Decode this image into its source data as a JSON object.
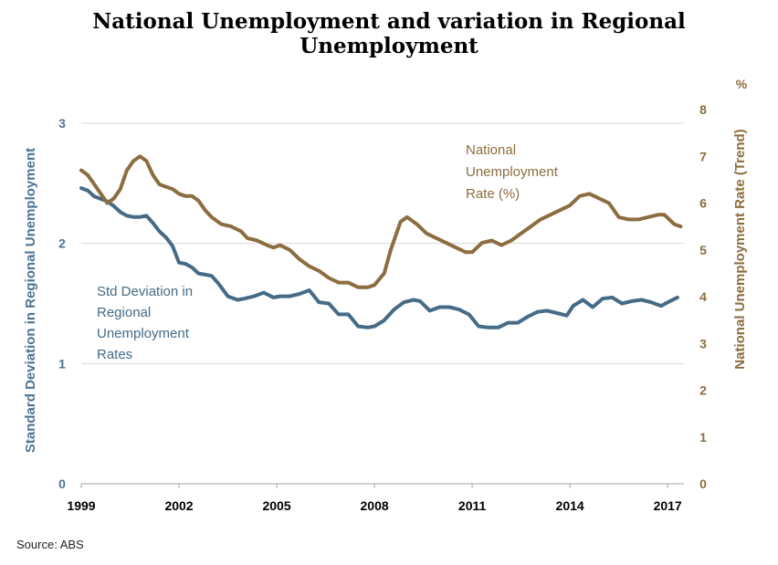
{
  "title": "National Unemployment and variation in Regional Unemployment",
  "source": "Source:  ABS",
  "chart_data": {
    "type": "line",
    "title": "National Unemployment and variation in Regional Unemployment",
    "xlabel": "",
    "ylabel_left": "Standard Deviation in Regional Unemployment",
    "ylabel_right": "National Unemployment Rate (Trend)",
    "right_unit": "%",
    "x_ticks": [
      "1999",
      "2002",
      "2005",
      "2008",
      "2011",
      "2014",
      "2017"
    ],
    "xlim": [
      1999.0,
      2017.5
    ],
    "ylim_left": [
      0,
      3
    ],
    "yticks_left": [
      "0",
      "1",
      "2",
      "3"
    ],
    "ylim_right": [
      0,
      8
    ],
    "yticks_right": [
      "0",
      "1",
      "2",
      "3",
      "4",
      "5",
      "6",
      "7",
      "8"
    ],
    "grid": true,
    "colors": {
      "national": "#8c6d3f",
      "stddev": "#466b87",
      "grid": "#d9d9d9",
      "left_axis": "#4f7393",
      "right_axis": "#8c6d3f"
    },
    "annotations": {
      "national": [
        "National",
        "Unemployment",
        "Rate (%)"
      ],
      "stddev": [
        "Std Deviation in",
        "Regional",
        "Unemployment",
        "Rates"
      ]
    },
    "series": [
      {
        "name": "Std Deviation in Regional Unemployment Rates",
        "axis": "left",
        "x": [
          1999.0,
          1999.2,
          1999.4,
          1999.6,
          1999.8,
          2000.0,
          2000.2,
          2000.4,
          2000.6,
          2000.8,
          2001.0,
          2001.2,
          2001.4,
          2001.6,
          2001.8,
          2002.0,
          2002.2,
          2002.4,
          2002.6,
          2002.8,
          2003.0,
          2003.2,
          2003.5,
          2003.8,
          2004.0,
          2004.3,
          2004.6,
          2004.9,
          2005.1,
          2005.4,
          2005.7,
          2006.0,
          2006.3,
          2006.6,
          2006.9,
          2007.2,
          2007.5,
          2007.8,
          2008.0,
          2008.3,
          2008.6,
          2008.9,
          2009.2,
          2009.4,
          2009.7,
          2010.0,
          2010.3,
          2010.6,
          2010.9,
          2011.2,
          2011.5,
          2011.8,
          2012.1,
          2012.4,
          2012.7,
          2013.0,
          2013.3,
          2013.6,
          2013.9,
          2014.1,
          2014.4,
          2014.7,
          2015.0,
          2015.3,
          2015.6,
          2015.9,
          2016.2,
          2016.5,
          2016.8,
          2017.0,
          2017.3
        ],
        "values": [
          2.46,
          2.44,
          2.39,
          2.37,
          2.35,
          2.31,
          2.26,
          2.23,
          2.22,
          2.22,
          2.23,
          2.17,
          2.1,
          2.05,
          1.98,
          1.84,
          1.83,
          1.8,
          1.75,
          1.74,
          1.73,
          1.67,
          1.56,
          1.53,
          1.54,
          1.56,
          1.59,
          1.55,
          1.56,
          1.56,
          1.58,
          1.61,
          1.51,
          1.5,
          1.41,
          1.41,
          1.31,
          1.3,
          1.31,
          1.36,
          1.45,
          1.51,
          1.53,
          1.52,
          1.44,
          1.47,
          1.47,
          1.45,
          1.41,
          1.31,
          1.3,
          1.3,
          1.34,
          1.34,
          1.39,
          1.43,
          1.44,
          1.42,
          1.4,
          1.48,
          1.53,
          1.47,
          1.54,
          1.55,
          1.5,
          1.52,
          1.53,
          1.51,
          1.48,
          1.51,
          1.55
        ]
      },
      {
        "name": "National Unemployment Rate (%)",
        "axis": "right",
        "x": [
          1999.0,
          1999.2,
          1999.4,
          1999.6,
          1999.8,
          2000.0,
          2000.2,
          2000.4,
          2000.6,
          2000.8,
          2001.0,
          2001.2,
          2001.4,
          2001.6,
          2001.8,
          2002.0,
          2002.2,
          2002.4,
          2002.6,
          2002.8,
          2003.0,
          2003.3,
          2003.6,
          2003.9,
          2004.1,
          2004.4,
          2004.7,
          2004.9,
          2005.1,
          2005.4,
          2005.7,
          2006.0,
          2006.3,
          2006.6,
          2006.9,
          2007.2,
          2007.5,
          2007.8,
          2008.0,
          2008.3,
          2008.5,
          2008.8,
          2009.0,
          2009.3,
          2009.6,
          2009.9,
          2010.2,
          2010.5,
          2010.8,
          2011.0,
          2011.3,
          2011.6,
          2011.9,
          2012.2,
          2012.5,
          2012.8,
          2013.1,
          2013.4,
          2013.7,
          2014.0,
          2014.3,
          2014.6,
          2014.9,
          2015.2,
          2015.5,
          2015.8,
          2016.1,
          2016.4,
          2016.7,
          2016.9,
          2017.2,
          2017.4
        ],
        "values": [
          6.7,
          6.6,
          6.4,
          6.2,
          6.0,
          6.1,
          6.3,
          6.7,
          6.9,
          7.0,
          6.9,
          6.6,
          6.4,
          6.35,
          6.3,
          6.2,
          6.15,
          6.15,
          6.05,
          5.85,
          5.7,
          5.55,
          5.5,
          5.4,
          5.25,
          5.2,
          5.1,
          5.05,
          5.1,
          5.0,
          4.8,
          4.65,
          4.55,
          4.4,
          4.3,
          4.3,
          4.2,
          4.2,
          4.25,
          4.5,
          5.0,
          5.6,
          5.7,
          5.55,
          5.35,
          5.25,
          5.15,
          5.05,
          4.95,
          4.95,
          5.15,
          5.2,
          5.1,
          5.2,
          5.35,
          5.5,
          5.65,
          5.75,
          5.85,
          5.95,
          6.15,
          6.2,
          6.1,
          6.0,
          5.7,
          5.65,
          5.65,
          5.7,
          5.75,
          5.75,
          5.55,
          5.5
        ]
      }
    ]
  }
}
